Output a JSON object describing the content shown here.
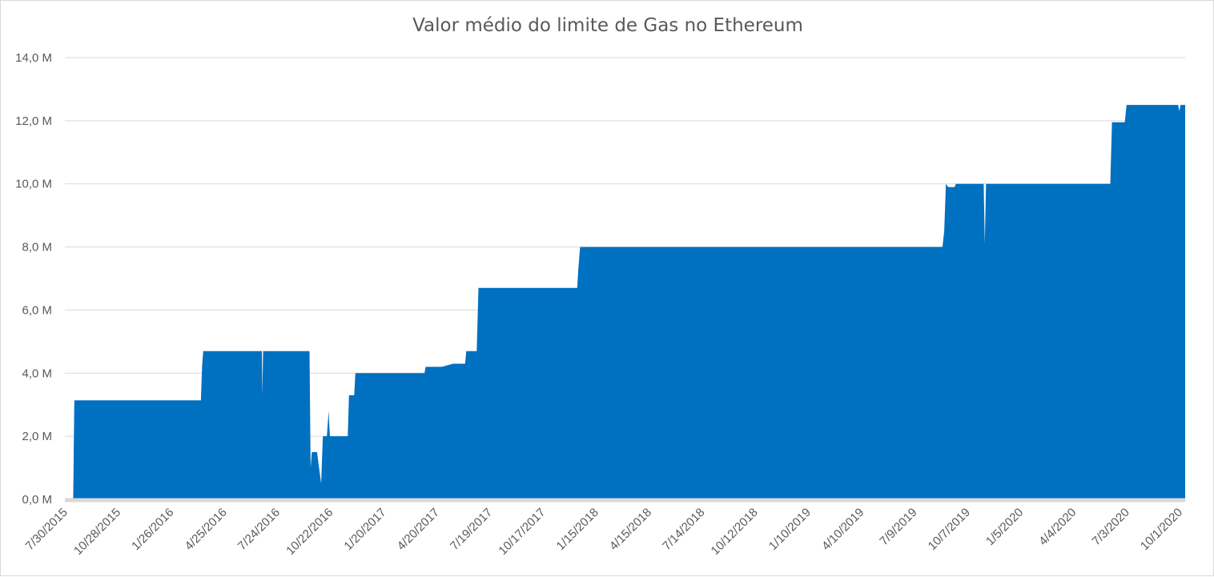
{
  "chart_data": {
    "type": "area",
    "title": "Valor médio do limite de Gas no Ethereum",
    "xlabel": "",
    "ylabel": "",
    "y_unit": "M",
    "ylim": [
      0,
      14
    ],
    "y_ticks": [
      "0,0  M",
      "2,0  M",
      "4,0  M",
      "6,0  M",
      "8,0  M",
      "10,0  M",
      "12,0  M",
      "14,0  M"
    ],
    "y_tick_values": [
      0,
      2,
      4,
      6,
      8,
      10,
      12,
      14
    ],
    "x_ticks": [
      "7/30/2015",
      "10/28/2015",
      "1/26/2016",
      "4/25/2016",
      "7/24/2016",
      "10/22/2016",
      "1/20/2017",
      "4/20/2017",
      "7/19/2017",
      "10/17/2017",
      "1/15/2018",
      "4/15/2018",
      "7/14/2018",
      "10/12/2018",
      "1/10/2019",
      "4/10/2019",
      "7/9/2019",
      "10/7/2019",
      "1/5/2020",
      "4/4/2020",
      "7/3/2020",
      "10/1/2020"
    ],
    "grid": true,
    "legend": "none",
    "color": "#0070c0",
    "series": [
      {
        "x": [
          "7/30/2015",
          "8/5/2015",
          "8/7/2015",
          "3/12/2016",
          "3/14/2016",
          "3/16/2016",
          "6/25/2016",
          "6/26/2016",
          "6/27/2016",
          "9/15/2016",
          "9/17/2016",
          "9/19/2016",
          "9/21/2016",
          "9/28/2016",
          "10/5/2016",
          "10/8/2016",
          "10/12/2016",
          "10/15/2016",
          "10/18/2016",
          "10/20/2016",
          "11/20/2016",
          "11/22/2016",
          "12/1/2016",
          "12/3/2016",
          "12/6/2016",
          "4/1/2017",
          "4/3/2017",
          "5/1/2017",
          "5/20/2017",
          "6/10/2017",
          "6/12/2017",
          "6/30/2017",
          "7/3/2017",
          "7/5/2017",
          "12/20/2017",
          "12/22/2017",
          "12/25/2017",
          "12/28/2017",
          "9/10/2019",
          "9/13/2019",
          "9/16/2019",
          "9/20/2019",
          "10/1/2019",
          "10/3/2019",
          "11/20/2019",
          "11/22/2019",
          "11/24/2019",
          "6/25/2020",
          "6/28/2020",
          "7/20/2020",
          "7/23/2020",
          "10/20/2020",
          "10/22/2020",
          "10/24/2020",
          "11/1/2020"
        ],
        "values": [
          0.0,
          0.0,
          3.14,
          3.14,
          4.2,
          4.7,
          4.7,
          3.3,
          4.7,
          4.7,
          1.0,
          1.5,
          1.5,
          1.5,
          0.5,
          2.0,
          2.0,
          2.0,
          2.8,
          2.0,
          2.0,
          3.3,
          3.3,
          4.0,
          4.0,
          4.0,
          4.2,
          4.2,
          4.3,
          4.3,
          4.7,
          4.7,
          6.7,
          6.7,
          6.7,
          7.3,
          8.0,
          8.0,
          8.0,
          8.5,
          10.0,
          9.9,
          9.9,
          10.0,
          10.0,
          8.1,
          10.0,
          10.0,
          11.95,
          11.95,
          12.5,
          12.5,
          12.3,
          12.5,
          12.5
        ]
      }
    ]
  }
}
